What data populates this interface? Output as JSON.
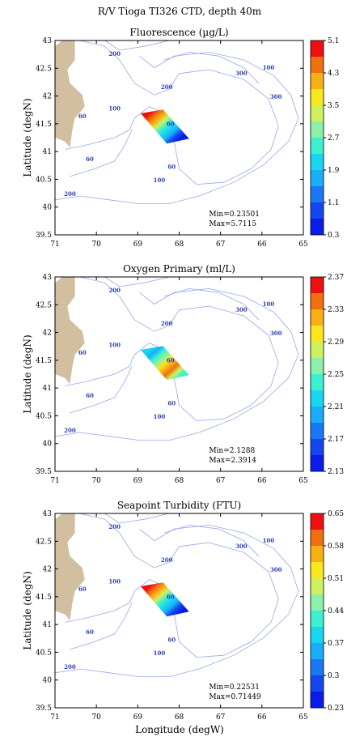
{
  "figure_title": "R/V Tioga TI326 CTD, depth 40m",
  "x_axis_label": "Longitude (degW)",
  "y_axis_label": "Latitude (degN)",
  "x_tick_labels": [
    "71",
    "70",
    "69",
    "68",
    "67",
    "66",
    "65"
  ],
  "y_tick_labels": [
    "43",
    "42.5",
    "42",
    "41.5",
    "41",
    "40.5",
    "40",
    "39.5"
  ],
  "depth_contour_labels": [
    "200",
    "60",
    "200",
    "300",
    "100",
    "300",
    "100",
    "60",
    "60",
    "100",
    "200"
  ],
  "colors": {
    "land": "#d2bfa0",
    "contour": "#9aa8e8",
    "depth_label": "#2b3fb8",
    "colormap": [
      "#0a1ce8",
      "#1446f0",
      "#1a78f5",
      "#1aaef8",
      "#18d6f0",
      "#3cf0d0",
      "#8cf0a8",
      "#d0f060",
      "#f8e81c",
      "#f8b014",
      "#f07010",
      "#ee1010"
    ]
  },
  "chart_data": [
    {
      "type": "heatmap",
      "title": "Fluorescence (µg/L)",
      "xlabel": "",
      "ylabel": "Latitude (degN)",
      "xlim": [
        71,
        65
      ],
      "ylim": [
        39.5,
        43
      ],
      "colorbar_ticks": [
        "5.1",
        "4.3",
        "3.5",
        "2.7",
        "1.9",
        "1.1",
        "0.3"
      ],
      "colorbar_range": [
        0.3,
        5.1
      ],
      "min_label": "Min=0.23501",
      "max_label": "Max=5.7115",
      "min": 0.23501,
      "max": 5.7115,
      "high_end": "north",
      "grid": false
    },
    {
      "type": "heatmap",
      "title": "Oxygen Primary (ml/L)",
      "xlabel": "",
      "ylabel": "Latitude (degN)",
      "xlim": [
        71,
        65
      ],
      "ylim": [
        39.5,
        43
      ],
      "colorbar_ticks": [
        "2.37",
        "2.33",
        "2.29",
        "2.25",
        "2.21",
        "2.17",
        "2.13"
      ],
      "colorbar_range": [
        2.13,
        2.37
      ],
      "min_label": "Min=2.1288",
      "max_label": "Max=2.3914",
      "min": 2.1288,
      "max": 2.3914,
      "high_end": "south",
      "grid": false
    },
    {
      "type": "heatmap",
      "title": "Seapoint Turbidity (FTU)",
      "xlabel": "Longitude (degW)",
      "ylabel": "Latitude (degN)",
      "xlim": [
        71,
        65
      ],
      "ylim": [
        39.5,
        43
      ],
      "colorbar_ticks": [
        "0.65",
        "0.58",
        "0.51",
        "0.44",
        "0.37",
        "0.3",
        "0.23"
      ],
      "colorbar_range": [
        0.23,
        0.65
      ],
      "min_label": "Min=0.22531",
      "max_label": "Max=0.71449",
      "min": 0.22531,
      "max": 0.71449,
      "high_end": "north",
      "grid": false
    }
  ]
}
